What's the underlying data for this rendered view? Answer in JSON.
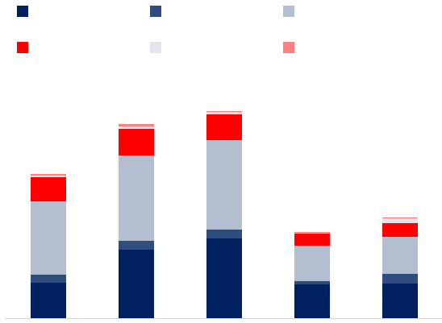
{
  "chart_data": {
    "type": "bar",
    "stacked": true,
    "categories": [
      "",
      "",
      "",
      "",
      ""
    ],
    "series": [
      {
        "color": "#002060",
        "values": [
          44,
          85,
          99,
          42,
          43
        ]
      },
      {
        "color": "#2f4d7e",
        "values": [
          10,
          11,
          11,
          4,
          12
        ]
      },
      {
        "color": "#b3bfd1",
        "values": [
          91,
          106,
          111,
          44,
          46
        ]
      },
      {
        "color": "#ff0000",
        "values": [
          30,
          33,
          32,
          15,
          17
        ]
      },
      {
        "color": "#e1e6ee",
        "values": [
          2,
          3,
          3,
          1,
          6
        ]
      },
      {
        "color": "#ff8080",
        "values": [
          2,
          3,
          1,
          1,
          1
        ]
      }
    ],
    "ylim": [
      0,
      270
    ],
    "grid": false,
    "legend": "top"
  }
}
